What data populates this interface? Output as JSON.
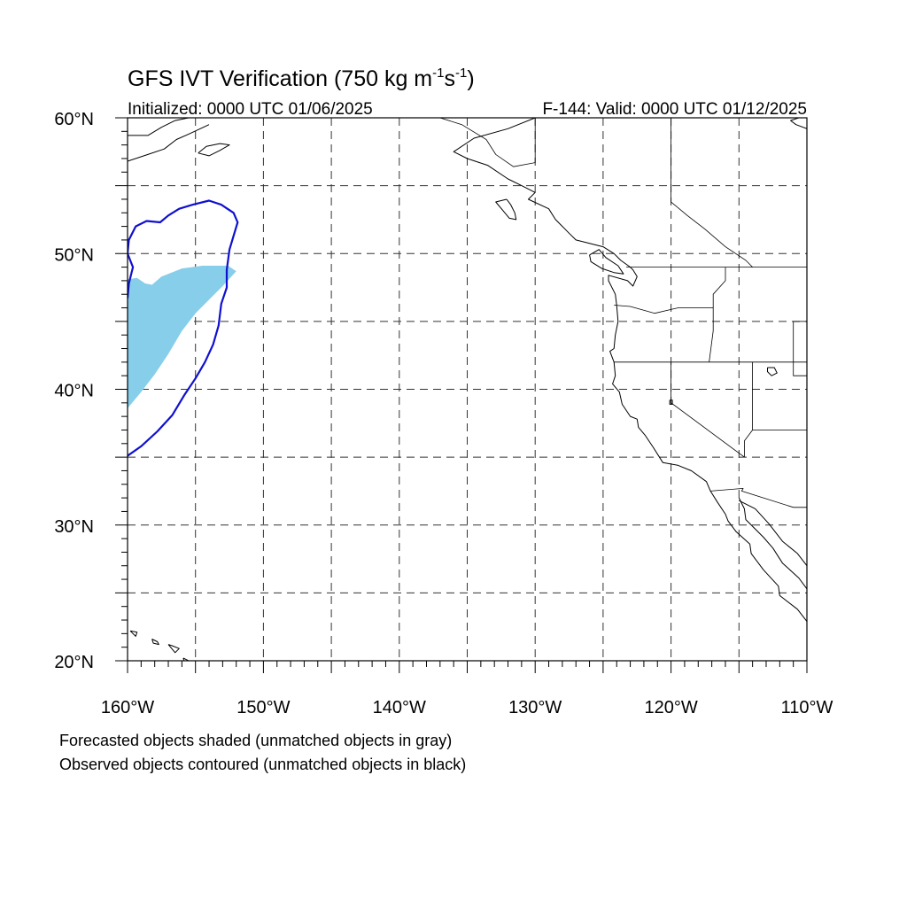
{
  "title": {
    "text": "GFS IVT Verification (750 kg m",
    "sup1": "-1",
    "mid": "s",
    "sup2": "-1",
    "end": ")"
  },
  "subtitle_left": "Initialized: 0000 UTC 01/06/2025",
  "subtitle_right": "F-144: Valid: 0000 UTC 01/12/2025",
  "captions": [
    "Forecasted objects shaded (unmatched objects in gray)",
    "Observed objects contoured (unmatched objects in black)"
  ],
  "colors": {
    "forecast_shade": "#87ceeb",
    "observed_contour": "#1010d0"
  },
  "chart_data": {
    "type": "map",
    "projection": "cylindrical-equidistant",
    "lon_range": [
      -160,
      -110
    ],
    "lat_range": [
      20,
      60
    ],
    "x_tick_labels": [
      {
        "lon": -160,
        "label": "160°W"
      },
      {
        "lon": -150,
        "label": "150°W"
      },
      {
        "lon": -140,
        "label": "140°W"
      },
      {
        "lon": -130,
        "label": "130°W"
      },
      {
        "lon": -120,
        "label": "120°W"
      },
      {
        "lon": -110,
        "label": "110°W"
      }
    ],
    "y_tick_labels": [
      {
        "lat": 60,
        "label": "60°N"
      },
      {
        "lat": 50,
        "label": "50°N"
      },
      {
        "lat": 40,
        "label": "40°N"
      },
      {
        "lat": 30,
        "label": "30°N"
      },
      {
        "lat": 20,
        "label": "20°N"
      }
    ],
    "grid_lons": [
      -155,
      -145,
      -135,
      -125,
      -115
    ],
    "grid_lats": [
      55,
      45,
      35,
      25
    ],
    "grid": true,
    "forecast_object": {
      "points": [
        [
          -160,
          38.6
        ],
        [
          -159,
          39.8
        ],
        [
          -158,
          41.1
        ],
        [
          -157,
          42.6
        ],
        [
          -156,
          44.3
        ],
        [
          -155,
          45.6
        ],
        [
          -154,
          46.6
        ],
        [
          -153,
          47.6
        ],
        [
          -152,
          48.7
        ],
        [
          -152.6,
          49.1
        ],
        [
          -154.5,
          49.1
        ],
        [
          -156,
          48.9
        ],
        [
          -157.5,
          48.3
        ],
        [
          -158.2,
          47.7
        ],
        [
          -158.7,
          47.8
        ],
        [
          -159.3,
          48.2
        ],
        [
          -160,
          48.1
        ]
      ]
    },
    "observed_object": {
      "points": [
        [
          -160,
          35.1
        ],
        [
          -159,
          35.8
        ],
        [
          -157.8,
          36.9
        ],
        [
          -156.7,
          38.1
        ],
        [
          -155.8,
          39.6
        ],
        [
          -155,
          40.8
        ],
        [
          -154.3,
          42.0
        ],
        [
          -153.7,
          43.3
        ],
        [
          -153.3,
          44.7
        ],
        [
          -153.1,
          46.3
        ],
        [
          -152.7,
          47.5
        ],
        [
          -152.7,
          48.8
        ],
        [
          -152.5,
          50.3
        ],
        [
          -152.2,
          51.3
        ],
        [
          -151.9,
          52.3
        ],
        [
          -152.2,
          53.0
        ],
        [
          -153.1,
          53.6
        ],
        [
          -154.0,
          53.9
        ],
        [
          -155.2,
          53.6
        ],
        [
          -156.2,
          53.3
        ],
        [
          -157.0,
          52.8
        ],
        [
          -157.6,
          52.3
        ],
        [
          -158.6,
          52.4
        ],
        [
          -159.4,
          52.0
        ],
        [
          -159.9,
          51.0
        ],
        [
          -160,
          50.0
        ],
        [
          -159.6,
          49.0
        ],
        [
          -159.9,
          47.8
        ],
        [
          -160,
          46.7
        ]
      ]
    },
    "coastlines": [
      [
        [
          -130,
          60
        ],
        [
          -132,
          59.2
        ],
        [
          -134.5,
          58.5
        ],
        [
          -136,
          57.5
        ],
        [
          -135,
          57
        ],
        [
          -133.5,
          56.5
        ],
        [
          -132,
          55.5
        ],
        [
          -131,
          55
        ],
        [
          -130,
          54.5
        ],
        [
          -130.5,
          54
        ],
        [
          -129,
          53.3
        ],
        [
          -128.5,
          52.5
        ],
        [
          -128,
          52
        ],
        [
          -127.5,
          51.5
        ],
        [
          -127,
          51
        ],
        [
          -125,
          50.5
        ],
        [
          -124.2,
          50
        ],
        [
          -123.7,
          49.5
        ],
        [
          -123,
          49
        ],
        [
          -122.8,
          48.8
        ],
        [
          -122.5,
          48.3
        ],
        [
          -122.8,
          47.6
        ],
        [
          -123.2,
          48
        ],
        [
          -124.6,
          48.4
        ],
        [
          -124.6,
          48
        ],
        [
          -124.1,
          47
        ],
        [
          -124,
          46.2
        ],
        [
          -123.9,
          45
        ],
        [
          -124.1,
          44
        ],
        [
          -124.2,
          43
        ],
        [
          -124.5,
          42.8
        ],
        [
          -124.2,
          42
        ],
        [
          -124.1,
          41
        ],
        [
          -124.3,
          40.4
        ],
        [
          -123.8,
          39.8
        ],
        [
          -123.6,
          38.9
        ],
        [
          -123,
          38
        ],
        [
          -122.5,
          37.8
        ],
        [
          -122.4,
          37.2
        ],
        [
          -121.9,
          36.6
        ],
        [
          -121.3,
          35.7
        ],
        [
          -120.6,
          34.6
        ],
        [
          -119.5,
          34.4
        ],
        [
          -118.5,
          34
        ],
        [
          -117.4,
          33.2
        ],
        [
          -117.1,
          32.5
        ],
        [
          -116.6,
          31.7
        ],
        [
          -116,
          30.8
        ],
        [
          -115.8,
          30.3
        ],
        [
          -115.2,
          29.5
        ],
        [
          -114.2,
          28.6
        ],
        [
          -114.1,
          27.9
        ],
        [
          -113.2,
          26.7
        ],
        [
          -112.1,
          25.5
        ],
        [
          -112,
          24.8
        ],
        [
          -110.7,
          23.8
        ],
        [
          -110,
          22.9
        ]
      ],
      [
        [
          -115,
          32
        ],
        [
          -114.6,
          31.2
        ],
        [
          -114.5,
          30.4
        ],
        [
          -113.2,
          29.1
        ],
        [
          -112.5,
          28.3
        ],
        [
          -111.8,
          27.2
        ],
        [
          -110.6,
          26.1
        ],
        [
          -110,
          25.3
        ]
      ],
      [
        [
          -110,
          27
        ],
        [
          -110.7,
          27.9
        ],
        [
          -111.8,
          28.8
        ],
        [
          -112.8,
          30.1
        ],
        [
          -113.8,
          31.2
        ],
        [
          -115,
          31.8
        ]
      ],
      [
        [
          -126,
          49.9
        ],
        [
          -125.3,
          50.3
        ],
        [
          -124.8,
          49.7
        ],
        [
          -123.9,
          49.1
        ],
        [
          -123.5,
          48.5
        ],
        [
          -124.2,
          48.6
        ],
        [
          -125.1,
          48.9
        ],
        [
          -125.9,
          49.4
        ],
        [
          -126,
          49.9
        ]
      ],
      [
        [
          -132.1,
          54
        ],
        [
          -131.8,
          53.6
        ],
        [
          -131.5,
          53
        ],
        [
          -131.4,
          52.5
        ],
        [
          -131.9,
          52.6
        ],
        [
          -132.4,
          53.2
        ],
        [
          -132.9,
          53.8
        ],
        [
          -132.1,
          54
        ]
      ],
      [
        [
          -160,
          58.7
        ],
        [
          -158.5,
          58.7
        ],
        [
          -157.5,
          59.3
        ],
        [
          -156.5,
          59.8
        ],
        [
          -155.5,
          60
        ]
      ],
      [
        [
          -160,
          56.8
        ],
        [
          -158.5,
          57.3
        ],
        [
          -157.3,
          57.7
        ],
        [
          -156.4,
          58.4
        ],
        [
          -155.5,
          58.8
        ],
        [
          -154,
          59.5
        ]
      ],
      [
        [
          -154.8,
          57.4
        ],
        [
          -154,
          57.2
        ],
        [
          -153.2,
          57.6
        ],
        [
          -152.5,
          58.0
        ],
        [
          -153.2,
          58.1
        ],
        [
          -154.2,
          57.9
        ],
        [
          -154.8,
          57.4
        ]
      ],
      [
        [
          -110,
          59.2
        ],
        [
          -110.8,
          59.5
        ],
        [
          -111.2,
          59.8
        ],
        [
          -110.6,
          60
        ],
        [
          -110,
          60
        ]
      ],
      [
        [
          -159.8,
          22.2
        ],
        [
          -159.3,
          22.1
        ],
        [
          -159.4,
          21.8
        ],
        [
          -159.8,
          22.2
        ]
      ],
      [
        [
          -158.2,
          21.6
        ],
        [
          -157.8,
          21.4
        ],
        [
          -157.7,
          21.2
        ],
        [
          -158.1,
          21.3
        ],
        [
          -158.2,
          21.6
        ]
      ],
      [
        [
          -157,
          21.2
        ],
        [
          -156.7,
          21.1
        ],
        [
          -156.2,
          20.9
        ],
        [
          -156.5,
          20.6
        ],
        [
          -157,
          21.2
        ]
      ],
      [
        [
          -155.9,
          20.2
        ],
        [
          -155.1,
          19.8
        ],
        [
          -154.9,
          19.6
        ],
        [
          -155.6,
          19.2
        ],
        [
          -155.9,
          20.2
        ]
      ]
    ],
    "borders": [
      [
        [
          -123.3,
          49
        ],
        [
          -110,
          49
        ]
      ],
      [
        [
          -124.2,
          46.2
        ],
        [
          -123,
          46.1
        ],
        [
          -121.2,
          45.6
        ],
        [
          -119.5,
          46
        ],
        [
          -116.9,
          46
        ],
        [
          -116.9,
          44.3
        ],
        [
          -117.2,
          42
        ]
      ],
      [
        [
          -124.2,
          42
        ],
        [
          -110,
          42
        ]
      ],
      [
        [
          -120,
          42
        ],
        [
          -120,
          39
        ],
        [
          -114.6,
          35
        ]
      ],
      [
        [
          -117.1,
          32.5
        ],
        [
          -114.7,
          32.7
        ],
        [
          -114.8,
          32.5
        ],
        [
          -111,
          31.3
        ],
        [
          -110,
          31.3
        ]
      ],
      [
        [
          -116,
          49
        ],
        [
          -116,
          48
        ],
        [
          -116.9,
          47
        ],
        [
          -116.9,
          46
        ]
      ],
      [
        [
          -114,
          42
        ],
        [
          -114,
          37
        ],
        [
          -114.6,
          36.2
        ],
        [
          -114.6,
          35
        ]
      ],
      [
        [
          -111,
          45
        ],
        [
          -110,
          45
        ]
      ],
      [
        [
          -111,
          45
        ],
        [
          -111,
          41
        ],
        [
          -110,
          41
        ]
      ],
      [
        [
          -114,
          37
        ],
        [
          -110,
          37
        ]
      ],
      [
        [
          -130,
          60
        ],
        [
          -130,
          56.7
        ],
        [
          -131.6,
          56.4
        ],
        [
          -132.9,
          57.3
        ],
        [
          -133.6,
          58.4
        ],
        [
          -135.4,
          59.5
        ],
        [
          -137,
          60
        ]
      ],
      [
        [
          -120,
          60
        ],
        [
          -120,
          53.8
        ],
        [
          -118.8,
          52.8
        ],
        [
          -117.5,
          51.8
        ],
        [
          -116,
          50.5
        ],
        [
          -114.5,
          49.5
        ],
        [
          -114,
          49
        ]
      ]
    ],
    "lakes": [
      [
        [
          -112.9,
          41.6
        ],
        [
          -112.4,
          41.6
        ],
        [
          -112.2,
          41.2
        ],
        [
          -112.6,
          41.0
        ],
        [
          -112.9,
          41.3
        ],
        [
          -112.9,
          41.6
        ]
      ],
      [
        [
          -120.1,
          39.2
        ],
        [
          -119.9,
          39.2
        ],
        [
          -119.9,
          38.9
        ],
        [
          -120.1,
          38.9
        ],
        [
          -120.1,
          39.2
        ]
      ]
    ]
  }
}
